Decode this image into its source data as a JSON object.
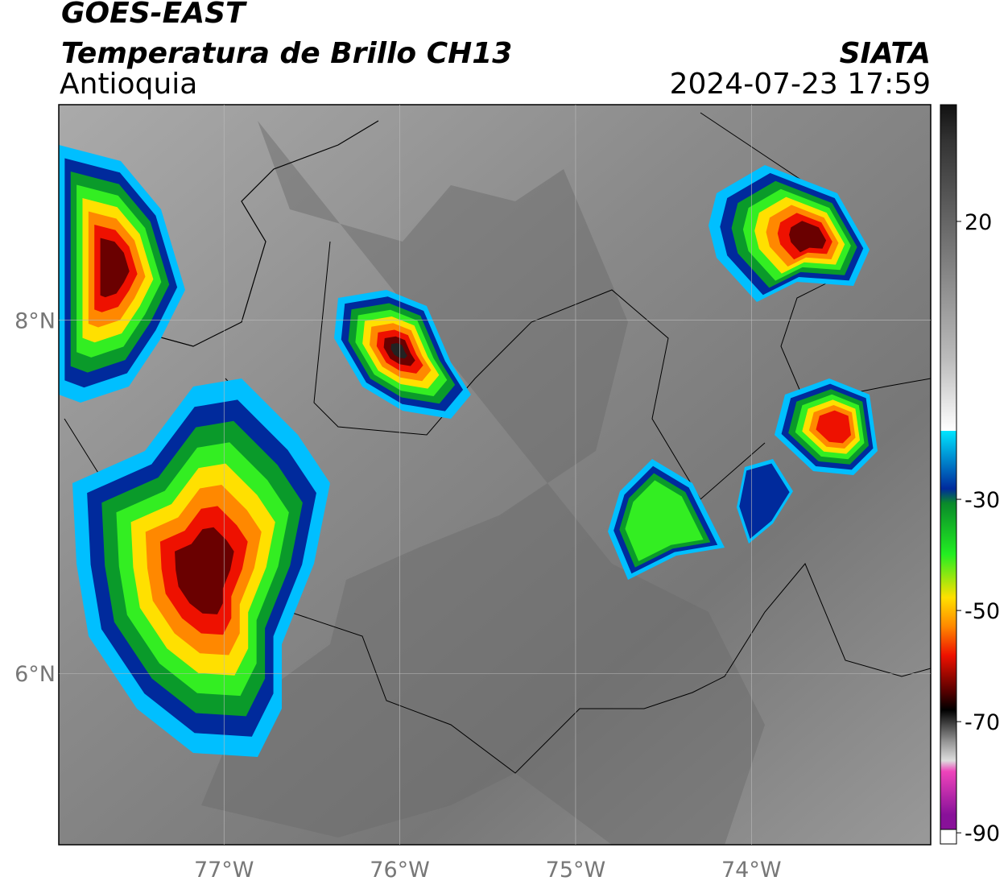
{
  "header": {
    "satellite": "GOES-EAST",
    "product": "Temperatura de Brillo CH13",
    "region": "Antioquia",
    "source": "SIATA",
    "datetime": "2024-07-23 17:59"
  },
  "map": {
    "lonlim": [
      -77.94,
      -72.98
    ],
    "latlim": [
      5.03,
      9.22
    ],
    "lonticks": [
      {
        "value": -77,
        "label": "77°W"
      },
      {
        "value": -76,
        "label": "76°W"
      },
      {
        "value": -75,
        "label": "75°W"
      },
      {
        "value": -74,
        "label": "74°W"
      }
    ],
    "latticks": [
      {
        "value": 8,
        "label": "8°N"
      },
      {
        "value": 6,
        "label": "6°N"
      }
    ]
  },
  "colorbar": {
    "lim": [
      -92,
      41
    ],
    "ticks": [
      20,
      -30,
      -50,
      -70,
      -90
    ]
  }
}
